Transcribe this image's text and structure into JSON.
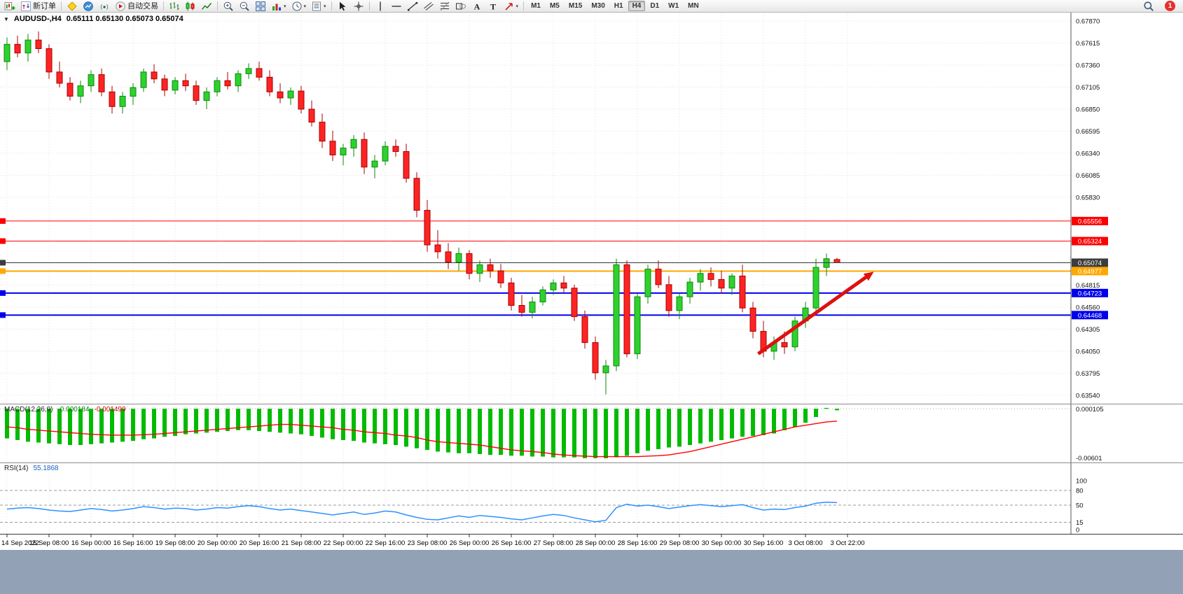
{
  "toolbar": {
    "items": [
      {
        "name": "new-chart",
        "icon": "newchart"
      },
      {
        "name": "new-order",
        "icon": "order",
        "label": "新订单"
      },
      {
        "type": "sep"
      },
      {
        "name": "market-watch",
        "icon": "diamond"
      },
      {
        "name": "profile-charts",
        "icon": "profile"
      },
      {
        "name": "connectivity",
        "icon": "signal"
      },
      {
        "name": "auto-trading",
        "icon": "autotrade",
        "label": "自动交易"
      },
      {
        "type": "sep"
      },
      {
        "name": "bar-chart-mode",
        "icon": "bars"
      },
      {
        "name": "candlestick-mode",
        "icon": "candles"
      },
      {
        "name": "line-chart-mode",
        "icon": "linechart"
      },
      {
        "type": "sep"
      },
      {
        "name": "zoom-in",
        "icon": "zoomin"
      },
      {
        "name": "zoom-out",
        "icon": "zoomout"
      },
      {
        "name": "tile-windows",
        "icon": "tile"
      },
      {
        "name": "indicators",
        "icon": "indicators",
        "dropdown": true
      },
      {
        "name": "periods",
        "icon": "clock",
        "dropdown": true
      },
      {
        "name": "templates",
        "icon": "template",
        "dropdown": true
      },
      {
        "type": "sep"
      },
      {
        "name": "cursor-tool",
        "icon": "cursor"
      },
      {
        "name": "crosshair-tool",
        "icon": "crosshair"
      },
      {
        "type": "sep"
      },
      {
        "name": "vertical-line-tool",
        "icon": "vline"
      },
      {
        "name": "horizontal-line-tool",
        "icon": "hline"
      },
      {
        "name": "trendline-tool",
        "icon": "trend"
      },
      {
        "name": "channel-tool",
        "icon": "channel"
      },
      {
        "name": "fibonacci-tool",
        "icon": "fibo"
      },
      {
        "name": "shapes-tool",
        "icon": "shapes"
      },
      {
        "name": "text-tool",
        "icon": "textA"
      },
      {
        "name": "label-tool",
        "icon": "textT"
      },
      {
        "name": "arrows-tool",
        "icon": "arrowobj",
        "dropdown": true
      },
      {
        "type": "sep"
      }
    ],
    "timeframes": [
      "M1",
      "M5",
      "M15",
      "M30",
      "H1",
      "H4",
      "D1",
      "W1",
      "MN"
    ],
    "active_timeframe": "H4",
    "notification_count": "1"
  },
  "chart": {
    "title": "AUDUSD-,H4",
    "ohlc_readout": "0.65111 0.65130 0.65073 0.65074"
  },
  "colors": {
    "up": "#2ed12e",
    "up_stroke": "#0b8a0b",
    "down": "#ff2424",
    "down_stroke": "#a80000",
    "macd_hist": "#00bb00",
    "macd_signal": "#ff0000",
    "rsi_line": "#2e90ff",
    "grid": "#e0e0e0",
    "bid_line": "#3c3c3c",
    "arrow": "#dd1111",
    "bottom_strip": "#93a1b6"
  },
  "chart_data": {
    "type": "candlestick",
    "symbol": "AUDUSD-",
    "timeframe": "H4",
    "current_ohlc": {
      "open": "0.65111",
      "high": "0.65130",
      "low": "0.65073",
      "close": "0.65074"
    },
    "price_axis": {
      "max": 0.6787,
      "min": 0.6354,
      "labels": [
        "0.67870",
        "0.67615",
        "0.67360",
        "0.67105",
        "0.66850",
        "0.66595",
        "0.66340",
        "0.66085",
        "0.65830",
        "0.64815",
        "0.64560",
        "0.64305",
        "0.64050",
        "0.63795",
        "0.63540"
      ],
      "hidden_grid_levels": [
        0.65575,
        0.6532,
        0.65065
      ]
    },
    "time_labels": [
      "14 Sep 2022",
      "15 Sep 08:00",
      "16 Sep 00:00",
      "16 Sep 16:00",
      "19 Sep 08:00",
      "20 Sep 00:00",
      "20 Sep 16:00",
      "21 Sep 08:00",
      "22 Sep 00:00",
      "22 Sep 16:00",
      "23 Sep 08:00",
      "26 Sep 00:00",
      "26 Sep 16:00",
      "27 Sep 08:00",
      "28 Sep 00:00",
      "28 Sep 16:00",
      "29 Sep 08:00",
      "30 Sep 00:00",
      "30 Sep 16:00",
      "3 Oct 08:00",
      "3 Oct 22:00"
    ],
    "bars_per_label": 4,
    "candles": [
      [
        0.674,
        0.6768,
        0.673,
        0.676
      ],
      [
        0.676,
        0.677,
        0.6745,
        0.675
      ],
      [
        0.675,
        0.6772,
        0.674,
        0.6765
      ],
      [
        0.6765,
        0.6775,
        0.675,
        0.6755
      ],
      [
        0.6755,
        0.676,
        0.672,
        0.6728
      ],
      [
        0.6728,
        0.674,
        0.671,
        0.6715
      ],
      [
        0.6715,
        0.6722,
        0.6695,
        0.67
      ],
      [
        0.67,
        0.6718,
        0.6692,
        0.6712
      ],
      [
        0.6712,
        0.673,
        0.6705,
        0.6725
      ],
      [
        0.6725,
        0.6732,
        0.67,
        0.6705
      ],
      [
        0.6705,
        0.6712,
        0.668,
        0.6688
      ],
      [
        0.6688,
        0.6705,
        0.668,
        0.67
      ],
      [
        0.67,
        0.6715,
        0.669,
        0.671
      ],
      [
        0.671,
        0.6732,
        0.6705,
        0.6728
      ],
      [
        0.6728,
        0.6737,
        0.6715,
        0.672
      ],
      [
        0.672,
        0.6725,
        0.67,
        0.6707
      ],
      [
        0.6707,
        0.6722,
        0.6702,
        0.6718
      ],
      [
        0.6718,
        0.6726,
        0.6706,
        0.6712
      ],
      [
        0.6712,
        0.6718,
        0.669,
        0.6695
      ],
      [
        0.6695,
        0.671,
        0.6685,
        0.6705
      ],
      [
        0.6705,
        0.6722,
        0.67,
        0.6718
      ],
      [
        0.6718,
        0.6728,
        0.6708,
        0.6712
      ],
      [
        0.6712,
        0.673,
        0.6705,
        0.6726
      ],
      [
        0.6726,
        0.6738,
        0.672,
        0.6732
      ],
      [
        0.6732,
        0.674,
        0.6718,
        0.6722
      ],
      [
        0.6722,
        0.673,
        0.67,
        0.6705
      ],
      [
        0.6705,
        0.6715,
        0.6692,
        0.6698
      ],
      [
        0.6698,
        0.671,
        0.669,
        0.6706
      ],
      [
        0.6706,
        0.6712,
        0.668,
        0.6685
      ],
      [
        0.6685,
        0.6695,
        0.6665,
        0.667
      ],
      [
        0.667,
        0.668,
        0.664,
        0.6648
      ],
      [
        0.6648,
        0.666,
        0.6625,
        0.6632
      ],
      [
        0.6632,
        0.6645,
        0.662,
        0.664
      ],
      [
        0.664,
        0.6655,
        0.663,
        0.665
      ],
      [
        0.665,
        0.6658,
        0.661,
        0.6618
      ],
      [
        0.6618,
        0.6632,
        0.6605,
        0.6625
      ],
      [
        0.6625,
        0.6648,
        0.662,
        0.6642
      ],
      [
        0.6642,
        0.665,
        0.663,
        0.6636
      ],
      [
        0.6636,
        0.6645,
        0.66,
        0.6605
      ],
      [
        0.6605,
        0.6612,
        0.656,
        0.6568
      ],
      [
        0.6568,
        0.658,
        0.652,
        0.6528
      ],
      [
        0.6528,
        0.6545,
        0.6512,
        0.652
      ],
      [
        0.652,
        0.653,
        0.65,
        0.6508
      ],
      [
        0.6508,
        0.6525,
        0.6498,
        0.6518
      ],
      [
        0.6518,
        0.6522,
        0.6488,
        0.6495
      ],
      [
        0.6495,
        0.651,
        0.6485,
        0.6505
      ],
      [
        0.6505,
        0.6512,
        0.649,
        0.6498
      ],
      [
        0.6498,
        0.6506,
        0.6478,
        0.6484
      ],
      [
        0.6484,
        0.649,
        0.6452,
        0.6458
      ],
      [
        0.6458,
        0.647,
        0.6445,
        0.645
      ],
      [
        0.645,
        0.6468,
        0.6443,
        0.6462
      ],
      [
        0.6462,
        0.648,
        0.6458,
        0.6476
      ],
      [
        0.6476,
        0.6488,
        0.647,
        0.6484
      ],
      [
        0.6484,
        0.6492,
        0.6472,
        0.6478
      ],
      [
        0.6478,
        0.6482,
        0.644,
        0.6445
      ],
      [
        0.6445,
        0.6452,
        0.6408,
        0.6415
      ],
      [
        0.6415,
        0.6422,
        0.6372,
        0.638
      ],
      [
        0.638,
        0.6395,
        0.6355,
        0.6388
      ],
      [
        0.6388,
        0.6512,
        0.6382,
        0.6505
      ],
      [
        0.6505,
        0.651,
        0.6398,
        0.6402
      ],
      [
        0.6402,
        0.6472,
        0.6396,
        0.6468
      ],
      [
        0.6468,
        0.6505,
        0.646,
        0.65
      ],
      [
        0.65,
        0.651,
        0.6478,
        0.6482
      ],
      [
        0.6482,
        0.6492,
        0.6445,
        0.6452
      ],
      [
        0.6452,
        0.6472,
        0.6442,
        0.6468
      ],
      [
        0.6468,
        0.649,
        0.646,
        0.6485
      ],
      [
        0.6485,
        0.65,
        0.6475,
        0.6495
      ],
      [
        0.6495,
        0.6502,
        0.648,
        0.6488
      ],
      [
        0.6488,
        0.6498,
        0.6472,
        0.6478
      ],
      [
        0.6478,
        0.6495,
        0.647,
        0.6492
      ],
      [
        0.6492,
        0.6505,
        0.645,
        0.6455
      ],
      [
        0.6455,
        0.6462,
        0.642,
        0.6428
      ],
      [
        0.6428,
        0.644,
        0.6398,
        0.6405
      ],
      [
        0.6405,
        0.6422,
        0.6395,
        0.6415
      ],
      [
        0.6415,
        0.6428,
        0.6402,
        0.641
      ],
      [
        0.641,
        0.6445,
        0.6405,
        0.644
      ],
      [
        0.644,
        0.6462,
        0.6432,
        0.6455
      ],
      [
        0.6455,
        0.6512,
        0.645,
        0.6502
      ],
      [
        0.6502,
        0.6518,
        0.6492,
        0.6512
      ],
      [
        0.65111,
        0.6513,
        0.65073,
        0.65074
      ]
    ],
    "hlines": [
      {
        "price": 0.65556,
        "label": "0.65556",
        "color": "#ff0000",
        "width": 1,
        "name": "resistance-line-1"
      },
      {
        "price": 0.65324,
        "label": "0.65324",
        "color": "#ff0000",
        "width": 1,
        "name": "resistance-line-2"
      },
      {
        "price": 0.65074,
        "label": "0.65074",
        "color": "#3c3c3c",
        "width": 1,
        "bid": true,
        "name": "bid-price-line"
      },
      {
        "price": 0.64977,
        "label": "0.64977",
        "color": "#ffa800",
        "width": 2,
        "name": "pivot-line"
      },
      {
        "price": 0.64723,
        "label": "0.64723",
        "color": "#0000ee",
        "width": 2,
        "name": "support-line-1"
      },
      {
        "price": 0.64468,
        "label": "0.64468",
        "color": "#0000ee",
        "width": 2,
        "name": "support-line-2"
      }
    ],
    "arrow": {
      "from_bar": 71.5,
      "from_price": 0.6402,
      "to_bar": 82.5,
      "to_price": 0.6497,
      "color": "#dd1111"
    },
    "macd": {
      "label": "MACD(12,26,9)",
      "value_main": "-0.000184",
      "value_signal": "-0.001499",
      "scale_max_label": "0.000105",
      "scale_min_label": "-0.00601",
      "max": 0.000105,
      "min": -0.00601,
      "histogram": [
        -0.0036,
        -0.0038,
        -0.004,
        -0.0041,
        -0.0042,
        -0.0043,
        -0.0044,
        -0.0044,
        -0.0043,
        -0.0042,
        -0.0041,
        -0.004,
        -0.0039,
        -0.0037,
        -0.0036,
        -0.0034,
        -0.0033,
        -0.0031,
        -0.003,
        -0.0029,
        -0.0028,
        -0.0027,
        -0.0026,
        -0.0026,
        -0.0027,
        -0.0028,
        -0.0029,
        -0.003,
        -0.0031,
        -0.0033,
        -0.0035,
        -0.0037,
        -0.0038,
        -0.0039,
        -0.0041,
        -0.0042,
        -0.0043,
        -0.0044,
        -0.0046,
        -0.0048,
        -0.005,
        -0.0052,
        -0.0053,
        -0.0054,
        -0.0054,
        -0.0055,
        -0.0056,
        -0.0056,
        -0.0057,
        -0.0057,
        -0.0058,
        -0.0058,
        -0.0059,
        -0.0059,
        -0.0059,
        -0.006,
        -0.006,
        -0.00601,
        -0.0059,
        -0.0057,
        -0.0054,
        -0.0051,
        -0.0049,
        -0.0047,
        -0.0046,
        -0.0044,
        -0.0042,
        -0.004,
        -0.0038,
        -0.0036,
        -0.0034,
        -0.0033,
        -0.0032,
        -0.003,
        -0.0026,
        -0.0022,
        -0.0017,
        -0.001,
        0.000105,
        -0.000184
      ],
      "signal": [
        -0.0022,
        -0.0023,
        -0.0025,
        -0.0026,
        -0.0027,
        -0.0028,
        -0.0029,
        -0.003,
        -0.0031,
        -0.00315,
        -0.0032,
        -0.0032,
        -0.0032,
        -0.00315,
        -0.0031,
        -0.003,
        -0.0029,
        -0.0028,
        -0.0027,
        -0.0026,
        -0.0025,
        -0.0024,
        -0.0023,
        -0.0022,
        -0.0021,
        -0.002,
        -0.0019,
        -0.0019,
        -0.002,
        -0.0021,
        -0.0022,
        -0.0023,
        -0.0025,
        -0.0026,
        -0.0028,
        -0.0029,
        -0.003,
        -0.0032,
        -0.0033,
        -0.0035,
        -0.0038,
        -0.004,
        -0.0041,
        -0.0042,
        -0.0043,
        -0.0044,
        -0.0046,
        -0.0048,
        -0.005,
        -0.0051,
        -0.0052,
        -0.0053,
        -0.0055,
        -0.0056,
        -0.0057,
        -0.00575,
        -0.0058,
        -0.0058,
        -0.0058,
        -0.0058,
        -0.0058,
        -0.00575,
        -0.0057,
        -0.0056,
        -0.0054,
        -0.0052,
        -0.0049,
        -0.0046,
        -0.0043,
        -0.004,
        -0.0037,
        -0.0034,
        -0.0031,
        -0.0028,
        -0.0025,
        -0.0022,
        -0.002,
        -0.0018,
        -0.0016,
        -0.001499
      ]
    },
    "rsi": {
      "label": "RSI(14)",
      "value": "55.1868",
      "levels": [
        80,
        50,
        15
      ],
      "scale_labels": [
        "100",
        "80",
        "50",
        "15",
        "0"
      ],
      "values": [
        42,
        44,
        45,
        43,
        40,
        38,
        37,
        40,
        43,
        41,
        38,
        40,
        43,
        47,
        45,
        42,
        44,
        43,
        40,
        42,
        45,
        44,
        47,
        49,
        47,
        43,
        40,
        42,
        39,
        36,
        33,
        30,
        33,
        36,
        31,
        34,
        38,
        36,
        30,
        25,
        21,
        20,
        24,
        28,
        25,
        29,
        27,
        25,
        22,
        20,
        24,
        28,
        31,
        29,
        24,
        20,
        16,
        19,
        45,
        52,
        48,
        50,
        47,
        43,
        46,
        49,
        51,
        49,
        47,
        49,
        51,
        45,
        40,
        42,
        41,
        45,
        48,
        54,
        56,
        55.1868
      ]
    }
  }
}
